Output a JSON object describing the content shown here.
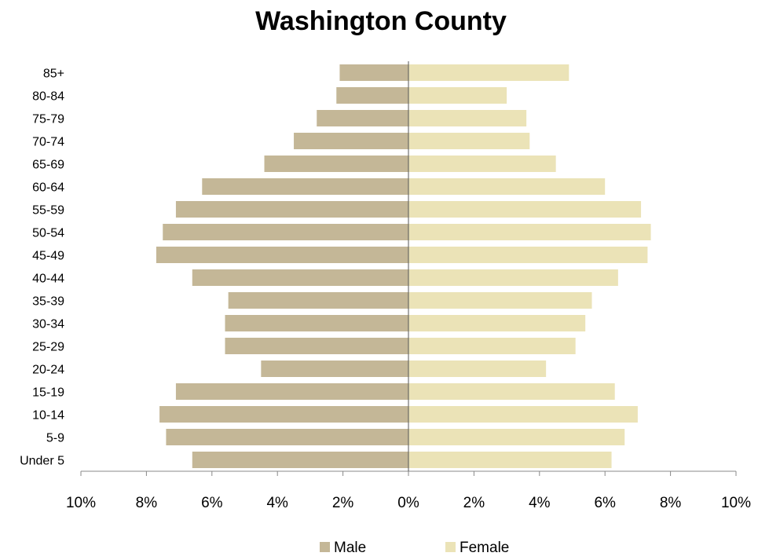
{
  "chart_data": {
    "type": "bar",
    "orientation": "horizontal",
    "layout": "population-pyramid",
    "title": "Washington County",
    "categories": [
      "85+",
      "80-84",
      "75-79",
      "70-74",
      "65-69",
      "60-64",
      "55-59",
      "50-54",
      "45-49",
      "40-44",
      "35-39",
      "30-34",
      "25-29",
      "20-24",
      "15-19",
      "10-14",
      "5-9",
      "Under 5"
    ],
    "series": [
      {
        "name": "Male",
        "color": "#c4b797",
        "values": [
          2.1,
          2.2,
          2.8,
          3.5,
          4.4,
          6.3,
          7.1,
          7.5,
          7.7,
          6.6,
          5.5,
          5.6,
          5.6,
          4.5,
          7.1,
          7.6,
          7.4,
          6.6
        ]
      },
      {
        "name": "Female",
        "color": "#ebe3b7",
        "values": [
          4.9,
          3.0,
          3.6,
          3.7,
          4.5,
          6.0,
          7.1,
          7.4,
          7.3,
          6.4,
          5.6,
          5.4,
          5.1,
          4.2,
          6.3,
          7.0,
          6.6,
          6.2
        ]
      }
    ],
    "xlim": [
      -10,
      10
    ],
    "x_ticks": [
      "10%",
      "8%",
      "6%",
      "4%",
      "2%",
      "0%",
      "2%",
      "4%",
      "6%",
      "8%",
      "10%"
    ],
    "grid": false,
    "legend": "bottom"
  }
}
